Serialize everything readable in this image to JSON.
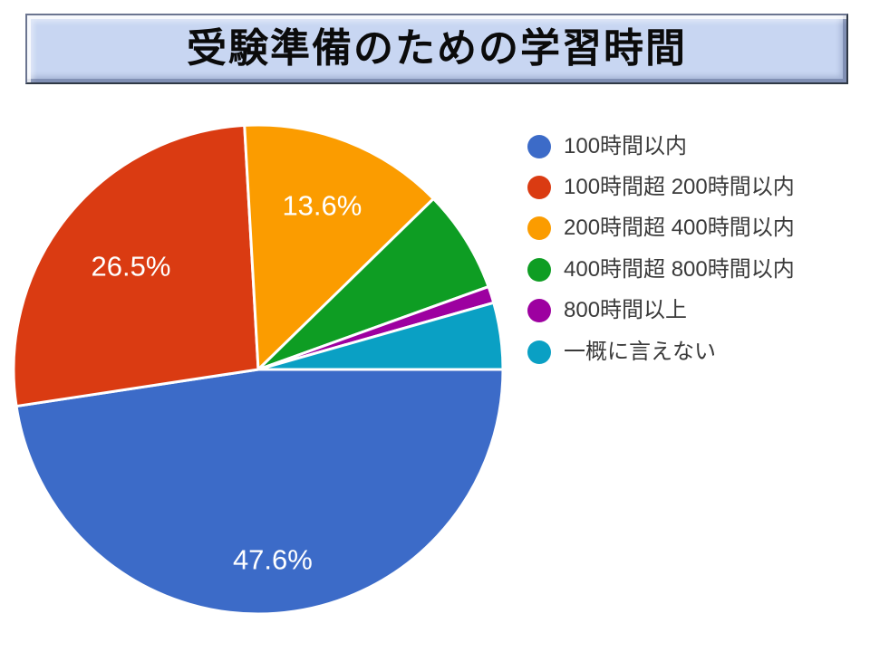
{
  "title": {
    "text": "受験準備のための学習時間"
  },
  "chart_data": {
    "type": "pie",
    "title": "受験準備のための学習時間",
    "legend_position": "right",
    "start_angle": "3-o'clock",
    "direction": "clockwise",
    "data_label_color": "#FFFFFF",
    "slices": [
      {
        "label": "100時間以内",
        "value": 47.6,
        "color": "#3C6BC8",
        "data_label": "47.6%"
      },
      {
        "label": "100時間超 200時間以内",
        "value": 26.5,
        "color": "#DA3B12",
        "data_label": "26.5%"
      },
      {
        "label": "200時間超 400時間以内",
        "value": 13.6,
        "color": "#FB9C00",
        "data_label": "13.6%"
      },
      {
        "label": "400時間超 800時間以内",
        "value": 6.8,
        "color": "#0E9D23",
        "data_label": ""
      },
      {
        "label": "800時間以上",
        "value": 1.1,
        "color": "#9D00A0",
        "data_label": ""
      },
      {
        "label": "一概に言えない",
        "value": 4.4,
        "color": "#0AA0C4",
        "data_label": ""
      }
    ]
  }
}
